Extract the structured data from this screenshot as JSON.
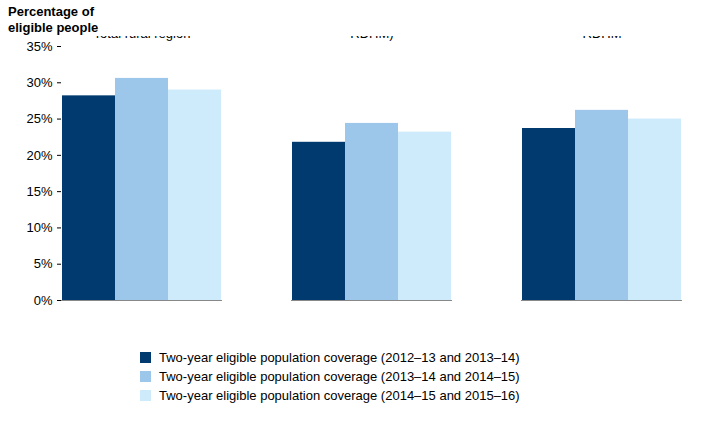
{
  "chart_data": {
    "type": "bar",
    "y_label": "Percentage of eligible people",
    "categories": [
      "Total rural region",
      "Total metro (including RDHM)",
      "Statewide agencies and RDHM"
    ],
    "series": [
      {
        "name": "Two-year eligible population coverage (2012–13 and 2013–14)",
        "color": "#003a6e",
        "values": [
          28.2,
          21.8,
          23.7
        ]
      },
      {
        "name": "Two-year eligible population coverage (2013–14 and 2014–15)",
        "color": "#9cc6ea",
        "values": [
          30.6,
          24.4,
          26.2
        ]
      },
      {
        "name": "Two-year eligible population coverage (2014–15 and 2015–16)",
        "color": "#cdebfa",
        "values": [
          29.0,
          23.2,
          25.0
        ]
      }
    ],
    "ylim": [
      0,
      35
    ],
    "yticks": [
      {
        "value": 0,
        "label": "0%"
      },
      {
        "value": 5,
        "label": "5%"
      },
      {
        "value": 10,
        "label": "10%"
      },
      {
        "value": 15,
        "label": "15%"
      },
      {
        "value": 20,
        "label": "20%"
      },
      {
        "value": 25,
        "label": "25%"
      },
      {
        "value": 30,
        "label": "30%"
      },
      {
        "value": 35,
        "label": "35%"
      }
    ],
    "grid": false,
    "legend": "bottom"
  }
}
